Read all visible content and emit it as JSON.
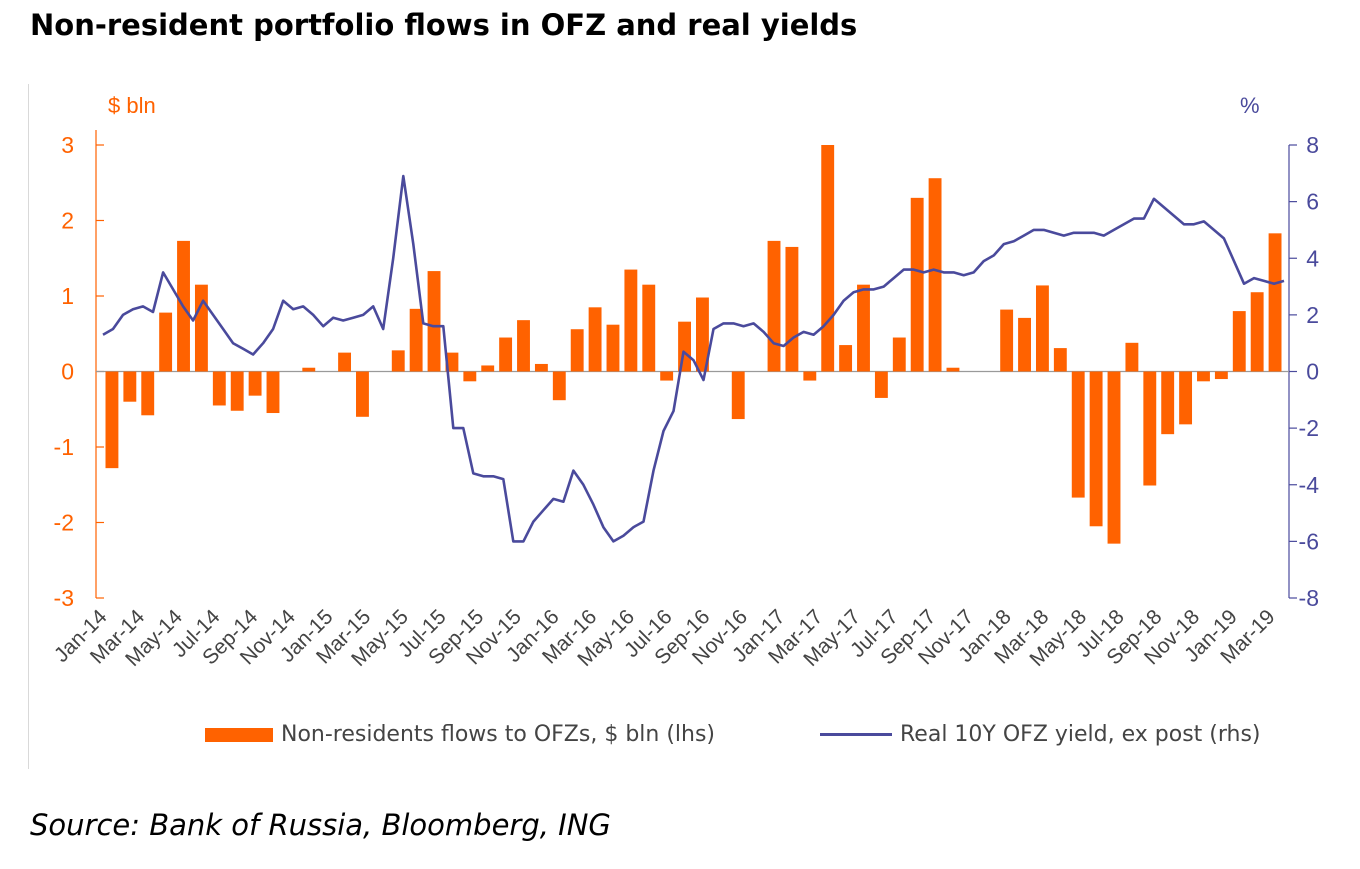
{
  "title": "Non-resident portfolio flows in OFZ and real yields",
  "source": "Source: Bank of Russia, Bloomberg, ING",
  "colors": {
    "bars": "#ff6200",
    "line": "#4a4a9c",
    "left_axis": "#ff6200",
    "right_axis": "#4a4a9c"
  },
  "chart_data": {
    "type": "bar+line",
    "left_axis": {
      "unit_label": "$ bln",
      "ylim": [
        -3,
        3
      ],
      "ticks": [
        "3",
        "2",
        "1",
        "0",
        "-1",
        "-2",
        "-3"
      ]
    },
    "right_axis": {
      "unit_label": "%",
      "ylim": [
        -8,
        8
      ],
      "ticks": [
        "8",
        "6",
        "4",
        "2",
        "0",
        "-2",
        "-4",
        "-6",
        "-8"
      ]
    },
    "x_labels": [
      "Jan-14",
      "Mar-14",
      "May-14",
      "Jul-14",
      "Sep-14",
      "Nov-14",
      "Jan-15",
      "Mar-15",
      "May-15",
      "Jul-15",
      "Sep-15",
      "Nov-15",
      "Jan-16",
      "Mar-16",
      "May-16",
      "Jul-16",
      "Sep-16",
      "Nov-16",
      "Jan-17",
      "Mar-17",
      "May-17",
      "Jul-17",
      "Sep-17",
      "Nov-17",
      "Jan-18",
      "Mar-18",
      "May-18",
      "Jul-18",
      "Sep-18",
      "Nov-18",
      "Jan-19",
      "Mar-19"
    ],
    "series": [
      {
        "name": "Non-residents flows to OFZs, $ bln (lhs)",
        "type": "bar",
        "axis": "left",
        "values": [
          -1.28,
          -0.4,
          -0.58,
          0.78,
          1.73,
          1.15,
          -0.45,
          -0.52,
          -0.32,
          -0.55,
          0.0,
          0.05,
          0.0,
          0.25,
          -0.6,
          0.0,
          0.28,
          0.83,
          1.33,
          0.25,
          -0.13,
          0.08,
          0.45,
          0.68,
          0.1,
          -0.38,
          0.56,
          0.85,
          0.62,
          1.35,
          1.15,
          -0.12,
          0.66,
          0.98,
          0.0,
          -0.63,
          0.0,
          1.73,
          1.65,
          -0.12,
          3.0,
          0.35,
          1.15,
          -0.35,
          0.45,
          2.3,
          2.56,
          0.05,
          0.0,
          0.0,
          0.82,
          0.71,
          1.14,
          0.31,
          -1.67,
          -2.05,
          -2.28,
          0.38,
          -1.51,
          -0.83,
          -0.7,
          -0.13,
          -0.1,
          0.8,
          1.05,
          1.83
        ]
      },
      {
        "name": "Real 10Y OFZ yield, ex post (rhs)",
        "type": "line",
        "axis": "right",
        "points": [
          [
            0,
            1.3
          ],
          [
            1,
            1.5
          ],
          [
            2,
            2.0
          ],
          [
            3,
            2.2
          ],
          [
            4,
            2.3
          ],
          [
            5,
            2.1
          ],
          [
            6,
            3.5
          ],
          [
            7,
            2.9
          ],
          [
            8,
            2.3
          ],
          [
            9,
            1.8
          ],
          [
            10,
            2.5
          ],
          [
            11,
            2.0
          ],
          [
            12,
            1.5
          ],
          [
            13,
            1.0
          ],
          [
            14,
            0.8
          ],
          [
            15,
            0.6
          ],
          [
            16,
            1.0
          ],
          [
            17,
            1.5
          ],
          [
            18,
            2.5
          ],
          [
            19,
            2.2
          ],
          [
            20,
            2.3
          ],
          [
            21,
            2.0
          ],
          [
            22,
            1.6
          ],
          [
            23,
            1.9
          ],
          [
            24,
            1.8
          ],
          [
            25,
            1.9
          ],
          [
            26,
            2.0
          ],
          [
            27,
            2.3
          ],
          [
            28,
            1.5
          ],
          [
            29,
            4.0
          ],
          [
            30,
            6.9
          ],
          [
            31,
            4.5
          ],
          [
            32,
            1.7
          ],
          [
            33,
            1.6
          ],
          [
            34,
            1.6
          ],
          [
            35,
            -2.0
          ],
          [
            36,
            -2.0
          ],
          [
            37,
            -3.6
          ],
          [
            38,
            -3.7
          ],
          [
            39,
            -3.7
          ],
          [
            40,
            -3.8
          ],
          [
            41,
            -6.0
          ],
          [
            42,
            -6.0
          ],
          [
            43,
            -5.3
          ],
          [
            44,
            -4.9
          ],
          [
            45,
            -4.5
          ],
          [
            46,
            -4.6
          ],
          [
            47,
            -3.5
          ],
          [
            48,
            -4.0
          ],
          [
            49,
            -4.7
          ],
          [
            50,
            -5.5
          ],
          [
            51,
            -6.0
          ],
          [
            52,
            -5.8
          ],
          [
            53,
            -5.5
          ],
          [
            54,
            -5.3
          ],
          [
            55,
            -3.5
          ],
          [
            56,
            -2.1
          ],
          [
            57,
            -1.4
          ],
          [
            58,
            0.7
          ],
          [
            59,
            0.4
          ],
          [
            60,
            -0.3
          ],
          [
            61,
            1.5
          ],
          [
            62,
            1.7
          ],
          [
            63,
            1.7
          ],
          [
            64,
            1.6
          ],
          [
            65,
            1.7
          ],
          [
            66,
            1.4
          ],
          [
            67,
            1.0
          ],
          [
            68,
            0.9
          ],
          [
            69,
            1.2
          ],
          [
            70,
            1.4
          ],
          [
            71,
            1.3
          ],
          [
            72,
            1.6
          ],
          [
            73,
            2.0
          ],
          [
            74,
            2.5
          ],
          [
            75,
            2.8
          ],
          [
            76,
            2.9
          ],
          [
            77,
            2.9
          ],
          [
            78,
            3.0
          ],
          [
            79,
            3.3
          ],
          [
            80,
            3.6
          ],
          [
            81,
            3.6
          ],
          [
            82,
            3.5
          ],
          [
            83,
            3.6
          ],
          [
            84,
            3.5
          ],
          [
            85,
            3.5
          ],
          [
            86,
            3.4
          ],
          [
            87,
            3.5
          ],
          [
            88,
            3.9
          ],
          [
            89,
            4.1
          ],
          [
            90,
            4.5
          ],
          [
            91,
            4.6
          ],
          [
            92,
            4.8
          ],
          [
            93,
            5.0
          ],
          [
            94,
            5.0
          ],
          [
            95,
            4.9
          ],
          [
            96,
            4.8
          ],
          [
            97,
            4.9
          ],
          [
            98,
            4.9
          ],
          [
            99,
            4.9
          ],
          [
            100,
            4.8
          ],
          [
            101,
            5.0
          ],
          [
            102,
            5.2
          ],
          [
            103,
            5.4
          ],
          [
            104,
            5.4
          ],
          [
            105,
            6.1
          ],
          [
            106,
            5.8
          ],
          [
            107,
            5.5
          ],
          [
            108,
            5.2
          ],
          [
            109,
            5.2
          ],
          [
            110,
            5.3
          ],
          [
            111,
            5.0
          ],
          [
            112,
            4.7
          ],
          [
            113,
            3.9
          ],
          [
            114,
            3.1
          ],
          [
            115,
            3.3
          ],
          [
            116,
            3.2
          ],
          [
            117,
            3.1
          ],
          [
            118,
            3.2
          ]
        ]
      }
    ]
  }
}
